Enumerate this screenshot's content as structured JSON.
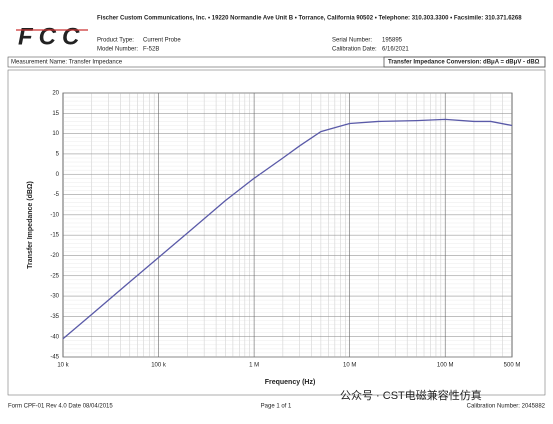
{
  "header": {
    "logo": "FCC",
    "company": "Fischer Custom Communications, Inc. • 19220 Normandie Ave Unit B • Torrance, California 90502 • Telephone: 310.303.3300 • Facsimile: 310.371.6268",
    "product_type_label": "Product Type:",
    "product_type": "Current Probe",
    "model_label": "Model Number:",
    "model": "F-52B",
    "serial_label": "Serial Number:",
    "serial": "195895",
    "date_label": "Calibration Date:",
    "date": "6/16/2021",
    "measurement": "Measurement Name: Transfer Impedance",
    "conversion": "Transfer Impedance Conversion: dBμA = dBμV - dBΩ"
  },
  "chart_data": {
    "type": "line",
    "x_label": "Frequency (Hz)",
    "y_label": "Transfer Impedance (dBΩ)",
    "xscale": "log",
    "grid": true,
    "xlim": [
      10000,
      500000000
    ],
    "ylim": [
      -45,
      20
    ],
    "xticks": [
      {
        "value": 10000,
        "label": "10 k"
      },
      {
        "value": 100000,
        "label": "100 k"
      },
      {
        "value": 1000000,
        "label": "1 M"
      },
      {
        "value": 10000000,
        "label": "10 M"
      },
      {
        "value": 100000000,
        "label": "100 M"
      },
      {
        "value": 500000000,
        "label": "500 M"
      }
    ],
    "yticks": [
      -45,
      -40,
      -35,
      -30,
      -25,
      -20,
      -15,
      -10,
      -5,
      0,
      5,
      10,
      15,
      20
    ],
    "series": [
      {
        "color": "#5a5aa8",
        "x": [
          10000,
          20000,
          50000,
          100000,
          200000,
          500000,
          1000000,
          2000000,
          3000000,
          5000000,
          10000000,
          20000000,
          50000000,
          100000000,
          200000000,
          300000000,
          500000000
        ],
        "values": [
          -40.5,
          -34.5,
          -26.5,
          -20.5,
          -14.5,
          -6.5,
          -1,
          4,
          7,
          10.5,
          12.5,
          13,
          13.2,
          13.5,
          13,
          13,
          12
        ]
      }
    ]
  },
  "footer": {
    "form": "Form CPF-01 Rev 4.0 Date 08/04/2015",
    "page": "Page 1 of 1",
    "calibration": "Calibration Number: 2045882",
    "watermark": "公众号 · CST电磁兼容性仿真"
  }
}
